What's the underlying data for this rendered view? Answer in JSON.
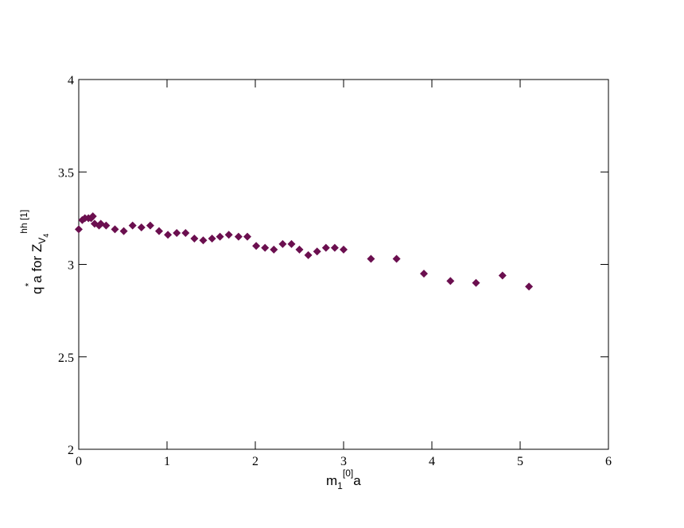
{
  "chart_data": {
    "type": "scatter",
    "x_label": [
      "m",
      "1",
      "[0]",
      "a"
    ],
    "y_label": [
      "q",
      "*",
      "a  for  Z",
      "V",
      "4",
      "hh [1]"
    ],
    "series": [
      {
        "name": "q* a",
        "color": "#6b0f4f",
        "x": [
          0.0,
          0.04,
          0.07,
          0.11,
          0.14,
          0.16,
          0.18,
          0.23,
          0.25,
          0.31,
          0.41,
          0.51,
          0.61,
          0.71,
          0.81,
          0.91,
          1.01,
          1.11,
          1.21,
          1.31,
          1.41,
          1.51,
          1.6,
          1.7,
          1.81,
          1.91,
          2.01,
          2.11,
          2.21,
          2.31,
          2.41,
          2.5,
          2.6,
          2.7,
          2.8,
          2.9,
          3.0,
          3.31,
          3.6,
          3.91,
          4.21,
          4.5,
          4.8,
          5.1
        ],
        "values": [
          3.19,
          3.24,
          3.25,
          3.25,
          3.25,
          3.26,
          3.22,
          3.21,
          3.22,
          3.21,
          3.19,
          3.18,
          3.21,
          3.2,
          3.21,
          3.18,
          3.16,
          3.17,
          3.17,
          3.14,
          3.13,
          3.14,
          3.15,
          3.16,
          3.15,
          3.15,
          3.1,
          3.09,
          3.08,
          3.11,
          3.11,
          3.08,
          3.05,
          3.07,
          3.09,
          3.09,
          3.08,
          3.03,
          3.03,
          2.95,
          2.91,
          2.9,
          2.94,
          2.88
        ]
      }
    ],
    "xlim": [
      0,
      6
    ],
    "xticks": [
      0,
      1,
      2,
      3,
      4,
      5,
      6
    ],
    "ylim": [
      2,
      4
    ],
    "yticks": [
      2,
      2.5,
      3,
      3.5,
      4
    ],
    "grid": false
  }
}
